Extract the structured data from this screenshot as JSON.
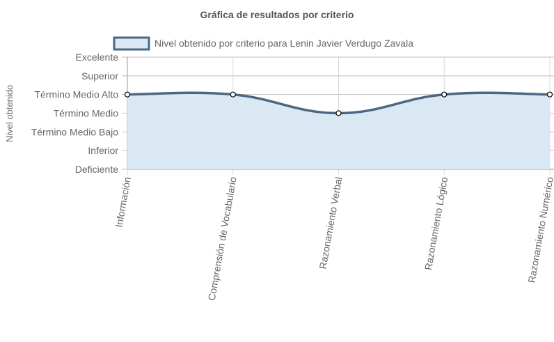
{
  "chart_data": {
    "type": "area",
    "title": "Gráfica de resultados por criterio",
    "xlabel": "",
    "ylabel": "Nivel obtenido",
    "categories": [
      "Información",
      "Comprensión de Vocabulario",
      "Razonamiento Verbal",
      "Razonamiento Lógico",
      "Razonamiento Numérico"
    ],
    "y_levels": [
      "Deficiente",
      "Inferior",
      "Término Medio Bajo",
      "Término Medio",
      "Término Medio Alto",
      "Superior",
      "Excelente"
    ],
    "ylim": [
      0,
      6
    ],
    "grid": true,
    "legend_position": "top",
    "series": [
      {
        "name": "Nivel obtenido por criterio para Lenin Javier Verdugo Zavala",
        "values": [
          4,
          4,
          3,
          4,
          4
        ],
        "value_labels": [
          "Término Medio Alto",
          "Término Medio Alto",
          "Término Medio",
          "Término Medio Alto",
          "Término Medio Alto"
        ],
        "line_color": "#4c6784",
        "fill_color": "#dae8f4"
      }
    ],
    "colors": {
      "title": "#555555",
      "axis_text": "#666666",
      "grid": "#bfbfbf",
      "axis_line": "#999999"
    }
  }
}
